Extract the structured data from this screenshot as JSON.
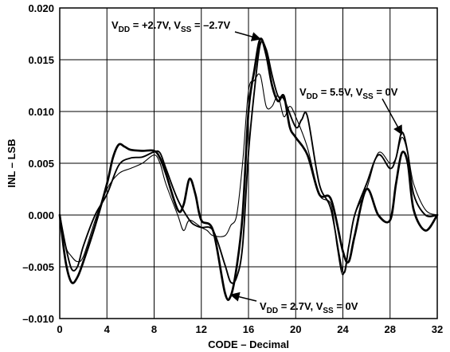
{
  "chart_data": {
    "type": "line",
    "title": "",
    "xlabel": "CODE – Decimal",
    "ylabel": "INL – LSB",
    "xlim": [
      0,
      32
    ],
    "ylim": [
      -0.01,
      0.02
    ],
    "xticks": [
      0,
      4,
      8,
      12,
      16,
      20,
      24,
      28,
      32
    ],
    "xtick_labels": [
      "0",
      "4",
      "8",
      "12",
      "16",
      "20",
      "24",
      "28",
      "32"
    ],
    "yticks": [
      -0.01,
      -0.005,
      0.0,
      0.005,
      0.01,
      0.015,
      0.02
    ],
    "ytick_labels": [
      "–0.010",
      "–0.005",
      "0.000",
      "0.005",
      "0.010",
      "0.015",
      "0.020"
    ],
    "grid": true,
    "legend": "none",
    "series": [
      {
        "key": "vdd27_vss_neg27",
        "stroke": "#000000",
        "weight": "medium",
        "x": [
          0,
          0.5,
          1,
          1.5,
          2,
          3,
          4,
          5,
          6,
          7,
          8,
          8.5,
          9,
          10,
          11,
          11.5,
          12,
          13,
          14,
          14.5,
          15,
          15.5,
          16,
          16.5,
          17,
          17.5,
          18,
          18.5,
          19,
          20,
          20.5,
          21,
          22,
          23,
          24,
          24.5,
          25,
          26,
          27,
          28,
          28.5,
          29,
          29.5,
          30,
          31,
          32
        ],
        "y": [
          0.0,
          -0.003,
          -0.0052,
          -0.005,
          -0.003,
          0.0,
          0.002,
          0.0048,
          0.0055,
          0.0056,
          0.0061,
          0.006,
          0.0045,
          0.0015,
          -0.0005,
          -0.001,
          -0.0012,
          -0.0015,
          -0.0048,
          -0.0065,
          -0.006,
          -0.003,
          0.006,
          0.012,
          0.0165,
          0.016,
          0.0135,
          0.0115,
          0.0112,
          0.0085,
          0.0092,
          0.0095,
          0.003,
          0.0005,
          -0.0055,
          -0.003,
          0.0,
          0.003,
          0.0058,
          0.0045,
          0.0055,
          0.008,
          0.006,
          0.002,
          0.0,
          0.0
        ]
      },
      {
        "key": "vdd55_vss0",
        "stroke": "#000000",
        "weight": "thin",
        "x": [
          0,
          0.5,
          1,
          1.5,
          2,
          3,
          4,
          5,
          6,
          7,
          8,
          8.5,
          9,
          10,
          10.5,
          11,
          12,
          12.5,
          13,
          14,
          14.5,
          15,
          15.5,
          16,
          16.5,
          17,
          17.5,
          18,
          18.5,
          19,
          19.5,
          20,
          21,
          22,
          23,
          23.5,
          24,
          24.5,
          25,
          26,
          27,
          28,
          28.5,
          29,
          29.5,
          30,
          31,
          32
        ],
        "y": [
          0.0,
          -0.003,
          -0.004,
          -0.0045,
          -0.004,
          -0.0005,
          0.0025,
          0.004,
          0.0045,
          0.005,
          0.0058,
          0.005,
          0.003,
          0.0,
          -0.0015,
          -0.0005,
          -0.0012,
          -0.0015,
          -0.002,
          -0.002,
          -0.001,
          0.0,
          0.005,
          0.012,
          0.013,
          0.0135,
          0.0105,
          0.0105,
          0.0115,
          0.0095,
          0.0105,
          0.0095,
          0.0065,
          0.002,
          0.001,
          -0.003,
          -0.0058,
          -0.003,
          0.0,
          0.0025,
          0.006,
          0.005,
          0.0055,
          0.0075,
          0.006,
          0.003,
          0.0005,
          0.0
        ]
      },
      {
        "key": "vdd27_vss0",
        "stroke": "#000000",
        "weight": "thick",
        "x": [
          0,
          0.5,
          1,
          1.5,
          2,
          3,
          4,
          4.5,
          5,
          5.5,
          6,
          7,
          8,
          8.5,
          9,
          10,
          10.5,
          11,
          11.5,
          12,
          13,
          14,
          14.5,
          15,
          15.5,
          16,
          16.5,
          17,
          17.5,
          18,
          18.5,
          19,
          19.5,
          20,
          21,
          22,
          23,
          24,
          24.5,
          25,
          26,
          27,
          28,
          28.5,
          29,
          29.5,
          30,
          31,
          32
        ],
        "y": [
          0.0,
          -0.0045,
          -0.0065,
          -0.006,
          -0.0045,
          -0.001,
          0.003,
          0.0055,
          0.0068,
          0.0066,
          0.0063,
          0.0062,
          0.0062,
          0.0055,
          0.004,
          0.0005,
          0.001,
          0.0035,
          0.002,
          -0.0005,
          -0.0015,
          -0.0075,
          -0.0078,
          -0.005,
          0.0,
          0.01,
          0.014,
          0.017,
          0.0155,
          0.0125,
          0.011,
          0.0115,
          0.0085,
          0.0075,
          0.0058,
          0.002,
          0.0015,
          -0.0035,
          -0.0045,
          -0.002,
          0.0025,
          0.0,
          -0.0005,
          0.003,
          0.006,
          0.005,
          0.0005,
          -0.0015,
          0.0
        ]
      }
    ],
    "annotations": [
      {
        "key": "top",
        "parts": [
          {
            "t": "V",
            "sub": false
          },
          {
            "t": "DD",
            "sub": true
          },
          {
            "t": " = +2.7V, V",
            "sub": false
          },
          {
            "t": "SS",
            "sub": true
          },
          {
            "t": " = –2.7V",
            "sub": false
          }
        ],
        "arrow_to": [
          17.0,
          0.017
        ]
      },
      {
        "key": "right",
        "parts": [
          {
            "t": "V",
            "sub": false
          },
          {
            "t": "DD",
            "sub": true
          },
          {
            "t": " = 5.5V, V",
            "sub": false
          },
          {
            "t": "SS",
            "sub": true
          },
          {
            "t": " = 0V",
            "sub": false
          }
        ],
        "arrow_to": [
          29.0,
          0.0078
        ]
      },
      {
        "key": "bottom",
        "parts": [
          {
            "t": "V",
            "sub": false
          },
          {
            "t": "DD",
            "sub": true
          },
          {
            "t": " = 2.7V, V",
            "sub": false
          },
          {
            "t": "SS",
            "sub": true
          },
          {
            "t": " = 0V",
            "sub": false
          }
        ],
        "arrow_to": [
          14.5,
          -0.0077
        ]
      }
    ]
  }
}
